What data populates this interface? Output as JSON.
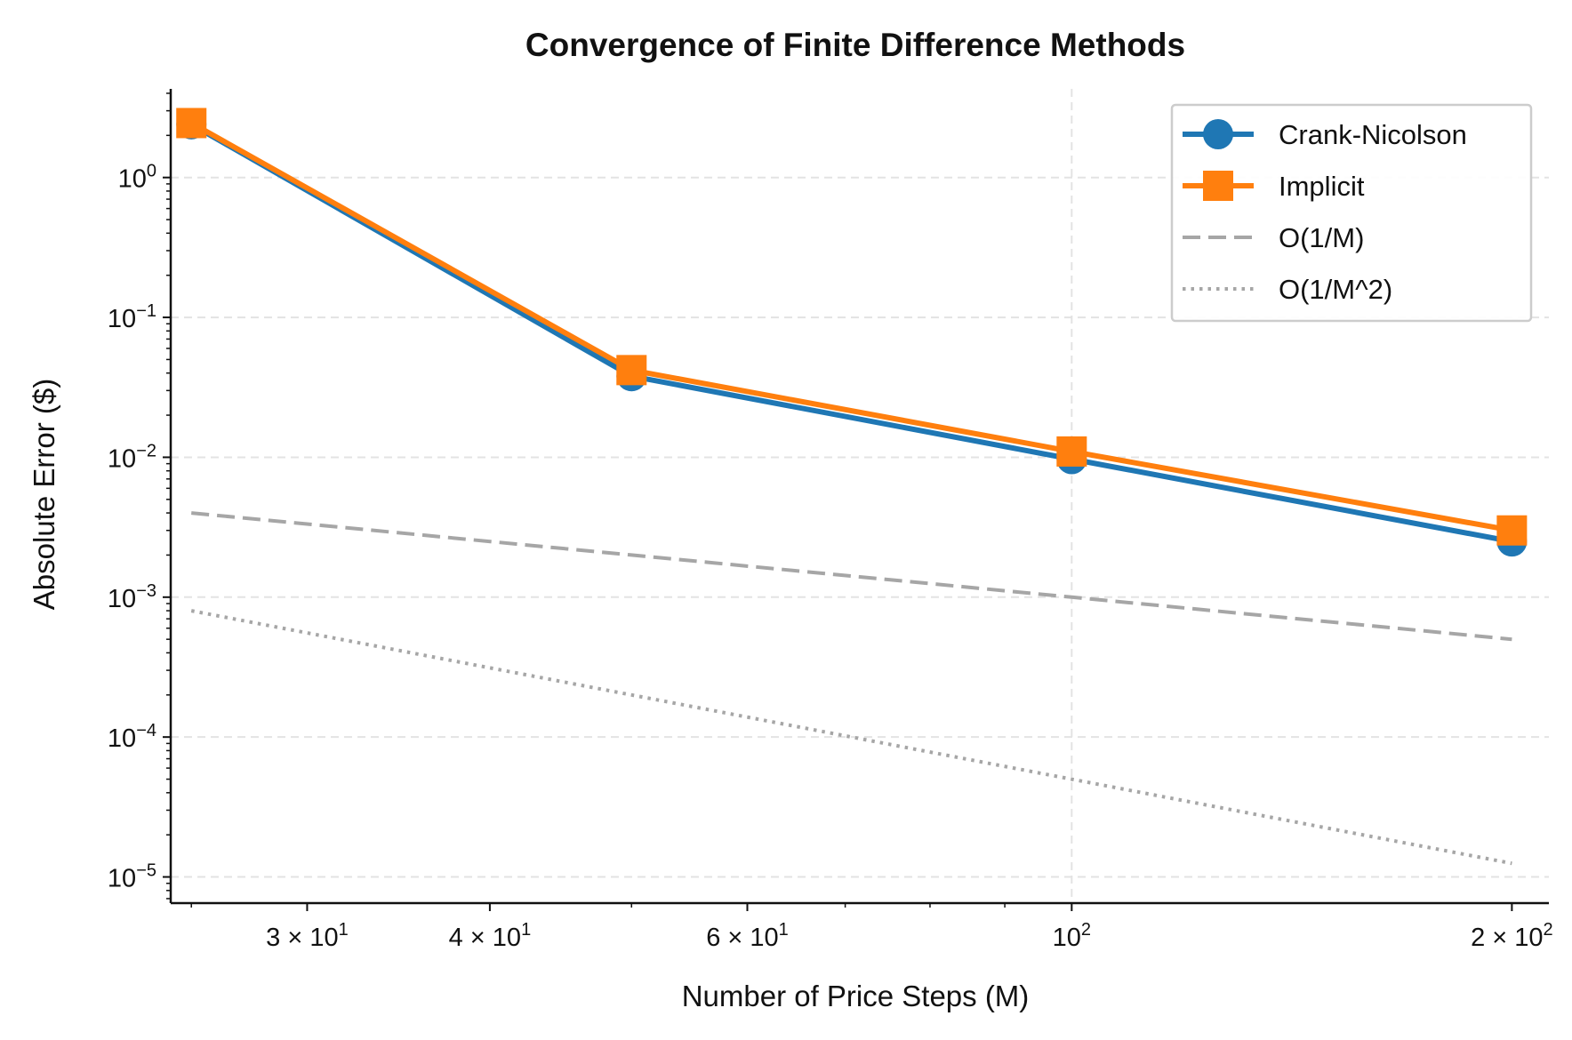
{
  "chart_data": {
    "type": "line",
    "title": "Convergence of Finite Difference Methods",
    "xlabel": "Number of Price Steps (M)",
    "ylabel": "Absolute Error ($)",
    "xscale": "log",
    "yscale": "log",
    "xlim": [
      24.2,
      212
    ],
    "ylim": [
      6.5e-06,
      4.3
    ],
    "grid": true,
    "legend_position": "top-right",
    "x_ticks": [
      {
        "value": 30,
        "mantissa": "3",
        "exponent": "1"
      },
      {
        "value": 40,
        "mantissa": "4",
        "exponent": "1"
      },
      {
        "value": 60,
        "mantissa": "6",
        "exponent": "1"
      },
      {
        "value": 100,
        "mantissa": "",
        "exponent": "2"
      },
      {
        "value": 200,
        "mantissa": "2",
        "exponent": "2"
      }
    ],
    "x_minor_ticks": [
      25,
      50,
      70,
      80,
      90
    ],
    "y_ticks": [
      {
        "value": 1,
        "exponent": "0"
      },
      {
        "value": 0.1,
        "exponent": "−1"
      },
      {
        "value": 0.01,
        "exponent": "−2"
      },
      {
        "value": 0.001,
        "exponent": "−3"
      },
      {
        "value": 0.0001,
        "exponent": "−4"
      },
      {
        "value": 1e-05,
        "exponent": "−5"
      }
    ],
    "series": [
      {
        "name": "Crank-Nicolson",
        "color": "#1f77b4",
        "style": "solid",
        "marker": "circle",
        "x": [
          25,
          50,
          100,
          200
        ],
        "y": [
          2.4,
          0.038,
          0.0097,
          0.0025
        ]
      },
      {
        "name": "Implicit",
        "color": "#ff7f0e",
        "style": "solid",
        "marker": "square",
        "x": [
          25,
          50,
          100,
          200
        ],
        "y": [
          2.45,
          0.042,
          0.011,
          0.003
        ]
      },
      {
        "name": "O(1/M)",
        "color": "#a6a6a6",
        "style": "dashed",
        "marker": "none",
        "x": [
          25,
          50,
          100,
          200
        ],
        "y": [
          0.004,
          0.002,
          0.001,
          0.0005
        ]
      },
      {
        "name": "O(1/M^2)",
        "color": "#a6a6a6",
        "style": "dotted",
        "marker": "none",
        "x": [
          25,
          50,
          100,
          200
        ],
        "y": [
          0.0008,
          0.0002,
          5e-05,
          1.25e-05
        ]
      }
    ]
  }
}
